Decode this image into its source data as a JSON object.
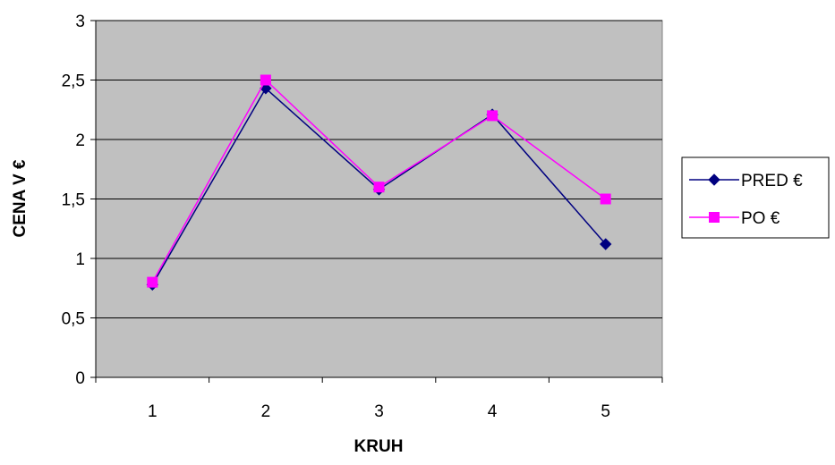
{
  "chart_data": {
    "type": "line",
    "categories": [
      "1",
      "2",
      "3",
      "4",
      "5"
    ],
    "series": [
      {
        "name": "PRED €",
        "values": [
          0.78,
          2.43,
          1.58,
          2.21,
          1.12
        ],
        "color": "#000080",
        "marker": "diamond"
      },
      {
        "name": "PO €",
        "values": [
          0.8,
          2.5,
          1.6,
          2.2,
          1.5
        ],
        "color": "#ff00ff",
        "marker": "square"
      }
    ],
    "title": "",
    "xlabel": "KRUH",
    "ylabel": "CENA V €",
    "ylim": [
      0,
      3
    ],
    "y_ticks": [
      0,
      0.5,
      1,
      1.5,
      2,
      2.5,
      3
    ],
    "y_tick_labels": [
      "0",
      "0,5",
      "1",
      "1,5",
      "2",
      "2,5",
      "3"
    ],
    "grid": true,
    "legend_position": "right",
    "plot_background": "#c0c0c0",
    "gridline_color": "#000000"
  }
}
